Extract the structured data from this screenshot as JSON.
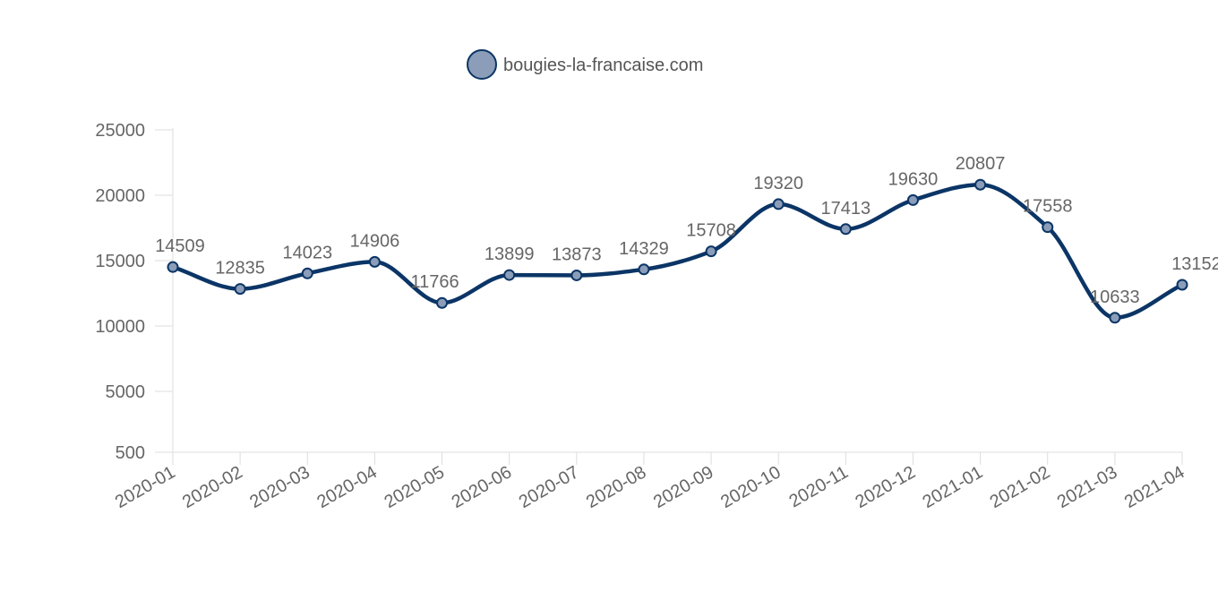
{
  "chart_data": {
    "type": "line",
    "title": "",
    "xlabel": "",
    "ylabel": "",
    "categories": [
      "2020-01",
      "2020-02",
      "2020-03",
      "2020-04",
      "2020-05",
      "2020-06",
      "2020-07",
      "2020-08",
      "2020-09",
      "2020-10",
      "2020-11",
      "2020-12",
      "2021-01",
      "2021-02",
      "2021-03",
      "2021-04"
    ],
    "series": [
      {
        "name": "bougies-la-francaise.com",
        "values": [
          14509,
          12835,
          14023,
          14906,
          11766,
          13899,
          13873,
          14329,
          15708,
          19320,
          17413,
          19630,
          20807,
          17558,
          10633,
          13152
        ],
        "color": "#0b3566",
        "marker_fill": "#8b9db8"
      }
    ],
    "yticks": [
      500,
      5000,
      10000,
      15000,
      20000,
      25000
    ],
    "ylim": [
      500,
      25000
    ],
    "smooth": true,
    "data_labels": true,
    "grid": false,
    "legend": "top-center"
  }
}
